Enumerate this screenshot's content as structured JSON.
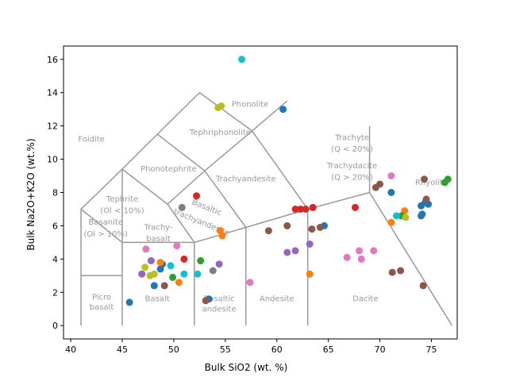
{
  "chart_data": {
    "type": "scatter",
    "title": "",
    "xlabel": "Bulk SiO2 (wt. %)",
    "ylabel": "Bulk Na2O+K2O (wt.%)",
    "xlim": [
      39.3,
      77.5
    ],
    "ylim": [
      -0.8,
      16.8
    ],
    "xticks": [
      40,
      45,
      50,
      55,
      60,
      65,
      70,
      75
    ],
    "yticks": [
      0,
      2,
      4,
      6,
      8,
      10,
      12,
      14,
      16
    ],
    "grid": false,
    "legend": "none",
    "field_boundaries": [
      [
        [
          41,
          0
        ],
        [
          41,
          7
        ],
        [
          45,
          9.4
        ],
        [
          48.4,
          11.5
        ],
        [
          52.5,
          14
        ],
        [
          57.6,
          11.7
        ],
        [
          63,
          7
        ],
        [
          63,
          0
        ]
      ],
      [
        [
          41,
          3
        ],
        [
          45,
          3
        ]
      ],
      [
        [
          45,
          0
        ],
        [
          45,
          5
        ],
        [
          52,
          5
        ],
        [
          52,
          0
        ]
      ],
      [
        [
          45,
          5
        ],
        [
          45,
          9.4
        ]
      ],
      [
        [
          52,
          5
        ],
        [
          57,
          5.9
        ],
        [
          57,
          0
        ]
      ],
      [
        [
          57,
          5.9
        ],
        [
          63,
          7
        ],
        [
          69,
          8
        ],
        [
          77,
          0
        ]
      ],
      [
        [
          69,
          8
        ],
        [
          69,
          12
        ]
      ],
      [
        [
          49.4,
          7.3
        ],
        [
          52,
          5
        ]
      ],
      [
        [
          49.4,
          7.3
        ],
        [
          53,
          9.3
        ],
        [
          57,
          5.9
        ]
      ],
      [
        [
          53,
          9.3
        ],
        [
          57.6,
          11.7
        ],
        [
          61,
          13.5
        ]
      ],
      [
        [
          48.4,
          11.5
        ],
        [
          53,
          9.3
        ]
      ],
      [
        [
          45,
          9.4
        ],
        [
          49.4,
          7.3
        ]
      ],
      [
        [
          41,
          7
        ],
        [
          45,
          5
        ]
      ]
    ],
    "field_labels": [
      {
        "text": "Foidite",
        "x": 42.0,
        "y": 11.2
      },
      {
        "text": "Tephriphonolite",
        "x": 54.5,
        "y": 11.6
      },
      {
        "text": "Phonolite",
        "x": 57.4,
        "y": 13.3
      },
      {
        "text": "Phonotephrite",
        "x": 49.5,
        "y": 9.4
      },
      {
        "text": "Trachyandesite",
        "x": 57.0,
        "y": 8.8
      },
      {
        "text": "Trachyte",
        "x": 67.3,
        "y": 11.3
      },
      {
        "text": "(Q < 20%)",
        "x": 67.3,
        "y": 10.6
      },
      {
        "text": "Trachydacite",
        "x": 67.3,
        "y": 9.6
      },
      {
        "text": "(Q > 20%)",
        "x": 67.3,
        "y": 8.9
      },
      {
        "text": "Tephrite",
        "x": 45.0,
        "y": 7.6
      },
      {
        "text": "(Ol < 10%)",
        "x": 45.0,
        "y": 6.9
      },
      {
        "text": "Basanite",
        "x": 43.4,
        "y": 6.2
      },
      {
        "text": "(Ol > 10%)",
        "x": 43.4,
        "y": 5.5
      },
      {
        "text": "Trachy-",
        "x": 48.5,
        "y": 5.9
      },
      {
        "text": "basalt",
        "x": 48.5,
        "y": 5.2
      },
      {
        "text": "Basaltic",
        "x": 53.2,
        "y": 7.1,
        "rotate": 22
      },
      {
        "text": "trachyandesite",
        "x": 52.7,
        "y": 6.2,
        "rotate": 22
      },
      {
        "text": "Picro",
        "x": 43.0,
        "y": 1.7
      },
      {
        "text": "basalt",
        "x": 43.0,
        "y": 1.1
      },
      {
        "text": "Basalt",
        "x": 48.4,
        "y": 1.6
      },
      {
        "text": "Basaltic",
        "x": 54.4,
        "y": 1.6
      },
      {
        "text": "andesite",
        "x": 54.4,
        "y": 1.0
      },
      {
        "text": "Andesite",
        "x": 60.0,
        "y": 1.6
      },
      {
        "text": "Dacite",
        "x": 68.6,
        "y": 1.6
      },
      {
        "text": "Rhyolite",
        "x": 75.0,
        "y": 8.6
      }
    ],
    "series": [
      {
        "color": "#1f77b4",
        "points": [
          [
            45.7,
            1.4
          ],
          [
            48.1,
            2.4
          ],
          [
            48.7,
            3.4
          ],
          [
            48.9,
            3.7
          ],
          [
            53.4,
            1.6
          ],
          [
            60.6,
            13
          ],
          [
            64.6,
            6
          ],
          [
            71.1,
            8
          ],
          [
            74.0,
            7.2
          ],
          [
            74.1,
            6.7
          ],
          [
            74.7,
            7.3
          ],
          [
            74.4,
            7.4
          ],
          [
            74.0,
            6.6
          ]
        ]
      },
      {
        "color": "#ff7f0e",
        "points": [
          [
            48.7,
            3.8
          ],
          [
            50.5,
            2.6
          ],
          [
            54.5,
            5.7
          ],
          [
            54.7,
            5.4
          ],
          [
            63.2,
            3.1
          ],
          [
            71.1,
            6.2
          ],
          [
            72.4,
            6.9
          ]
        ]
      },
      {
        "color": "#2ca02c",
        "points": [
          [
            49.9,
            2.9
          ],
          [
            52.6,
            3.9
          ],
          [
            72.1,
            6.6
          ],
          [
            76.3,
            8.6
          ],
          [
            76.6,
            8.8
          ]
        ]
      },
      {
        "color": "#d62728",
        "points": [
          [
            51.0,
            4
          ],
          [
            52.2,
            7.8
          ],
          [
            61.8,
            7
          ],
          [
            62.3,
            7
          ],
          [
            62.8,
            7
          ],
          [
            63.5,
            7.1
          ],
          [
            67.6,
            7.1
          ]
        ]
      },
      {
        "color": "#9467bd",
        "points": [
          [
            46.9,
            3.1
          ],
          [
            47.8,
            3.9
          ],
          [
            54.4,
            3.7
          ],
          [
            61.0,
            4.4
          ],
          [
            61.8,
            4.5
          ],
          [
            63.2,
            4.9
          ]
        ]
      },
      {
        "color": "#8c564b",
        "points": [
          [
            49.1,
            2.4
          ],
          [
            53.1,
            1.5
          ],
          [
            59.2,
            5.7
          ],
          [
            61.0,
            6
          ],
          [
            63.4,
            5.8
          ],
          [
            64.2,
            5.9
          ],
          [
            69.6,
            8.3
          ],
          [
            70.0,
            8.5
          ],
          [
            71.2,
            3.2
          ],
          [
            72.0,
            3.3
          ],
          [
            74.3,
            8.8
          ],
          [
            74.5,
            7.6
          ],
          [
            74.2,
            2.4
          ]
        ]
      },
      {
        "color": "#e377c2",
        "points": [
          [
            47.3,
            4.6
          ],
          [
            50.3,
            4.8
          ],
          [
            57.4,
            2.6
          ],
          [
            66.8,
            4.1
          ],
          [
            68.0,
            4.5
          ],
          [
            68.2,
            4
          ],
          [
            69.4,
            4.5
          ],
          [
            71.1,
            9
          ]
        ]
      },
      {
        "color": "#7f7f7f",
        "points": [
          [
            50.8,
            7.1
          ],
          [
            53.8,
            3.3
          ]
        ]
      },
      {
        "color": "#bcbd22",
        "points": [
          [
            47.2,
            3.5
          ],
          [
            47.7,
            3
          ],
          [
            48.1,
            3.1
          ],
          [
            54.3,
            13.1
          ],
          [
            54.6,
            13.2
          ],
          [
            72.5,
            6.5
          ]
        ]
      },
      {
        "color": "#17becf",
        "points": [
          [
            56.6,
            16
          ],
          [
            49.7,
            3.6
          ],
          [
            51.0,
            3.1
          ],
          [
            52.3,
            3.1
          ],
          [
            71.6,
            6.6
          ]
        ]
      }
    ]
  }
}
